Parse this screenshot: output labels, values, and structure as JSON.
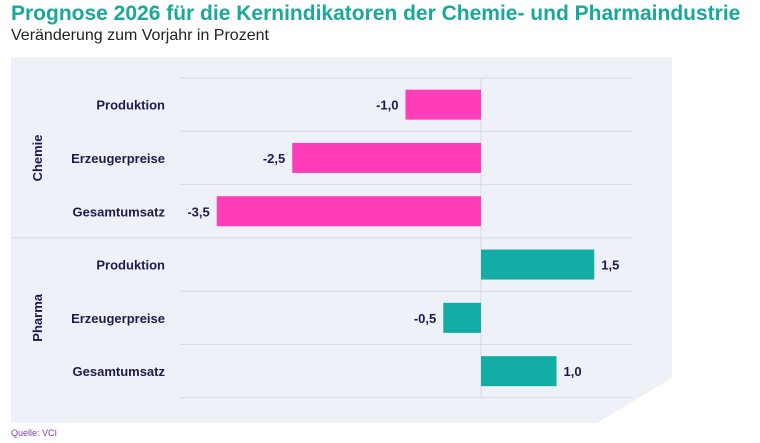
{
  "chart_data": {
    "type": "bar",
    "orientation": "horizontal",
    "title": "Prognose 2026 für die Kernindikatoren der Chemie- und Pharmaindustrie",
    "subtitle": "Veränderung zum Vorjahr in Prozent",
    "source": "Quelle: VCI",
    "groups": [
      {
        "name": "Chemie",
        "color": "#ff3db8",
        "categories": [
          "Produktion",
          "Erzeugerpreise",
          "Gesamtumsatz"
        ],
        "values": [
          -1.0,
          -2.5,
          -3.5
        ],
        "labels": [
          "-1,0",
          "-2,5",
          "-3,5"
        ]
      },
      {
        "name": "Pharma",
        "color": "#14ada6",
        "categories": [
          "Produktion",
          "Erzeugerpreise",
          "Gesamtumsatz"
        ],
        "values": [
          1.5,
          -0.5,
          1.0
        ],
        "labels": [
          "1,5",
          "-0,5",
          "1,0"
        ]
      }
    ],
    "xlim": [
      -4,
      2
    ],
    "grid": true,
    "panel_color": "#eef1f7"
  }
}
